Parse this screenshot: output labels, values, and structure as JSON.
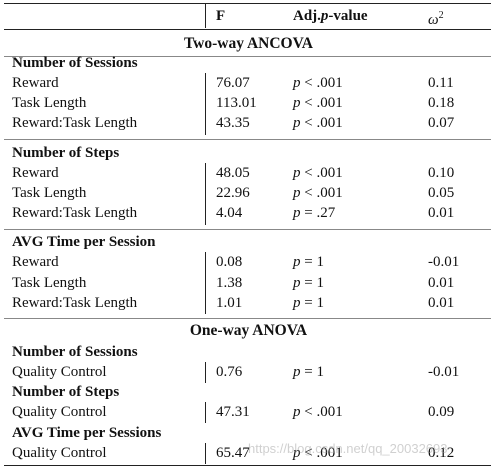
{
  "header": {
    "col_f": "F",
    "col_p_prefix": "Adj.",
    "col_p_var": "p",
    "col_p_suffix": "-value",
    "col_w_base": "ω",
    "col_w_sup": "2"
  },
  "sections": {
    "two_way": {
      "title": "Two-way ANCOVA",
      "groups": [
        {
          "name": "Number of Sessions",
          "rows": [
            {
              "label": "Reward",
              "f": "76.07",
              "p": "< .001",
              "w": "0.11"
            },
            {
              "label": "Task Length",
              "f": "113.01",
              "p": "< .001",
              "w": "0.18"
            },
            {
              "label": "Reward:Task Length",
              "f": "43.35",
              "p": "< .001",
              "w": "0.07"
            }
          ]
        },
        {
          "name": "Number of Steps",
          "rows": [
            {
              "label": "Reward",
              "f": "48.05",
              "p": "< .001",
              "w": "0.10"
            },
            {
              "label": "Task Length",
              "f": "22.96",
              "p": "< .001",
              "w": "0.05"
            },
            {
              "label": "Reward:Task Length",
              "f": "4.04",
              "p": "= .27",
              "w": "0.01"
            }
          ]
        },
        {
          "name": "AVG Time per Session",
          "rows": [
            {
              "label": "Reward",
              "f": "0.08",
              "p": "= 1",
              "w": "-0.01"
            },
            {
              "label": "Task Length",
              "f": "1.38",
              "p": "= 1",
              "w": "0.01"
            },
            {
              "label": "Reward:Task Length",
              "f": "1.01",
              "p": "= 1",
              "w": "0.01"
            }
          ]
        }
      ]
    },
    "one_way": {
      "title": "One-way ANOVA",
      "groups": [
        {
          "name": "Number of Sessions",
          "rows": [
            {
              "label": "Quality Control",
              "f": "0.76",
              "p": "= 1",
              "w": "-0.01"
            }
          ]
        },
        {
          "name": "Number of Steps",
          "rows": [
            {
              "label": "Quality Control",
              "f": "47.31",
              "p": "< .001",
              "w": "0.09"
            }
          ]
        },
        {
          "name": "AVG Time per Sessions",
          "rows": [
            {
              "label": "Quality Control",
              "f": "65.47",
              "p": "< .001",
              "w": "0.12"
            }
          ]
        }
      ]
    }
  },
  "p_var": "p",
  "watermark": "https://blog.csdn.net/qq_20032693"
}
